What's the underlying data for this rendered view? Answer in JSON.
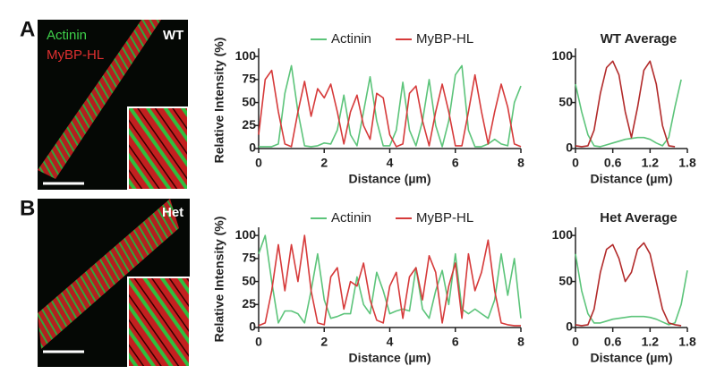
{
  "figure": {
    "panel_a": {
      "letter": "A",
      "genotype": "WT",
      "stain_1": "Actinin",
      "stain_2": "MyBP-HL"
    },
    "panel_b": {
      "letter": "B",
      "genotype": "Het"
    }
  },
  "chart_data": [
    {
      "type": "line",
      "x_label": "Distance (µm)",
      "y_label": "Relative Intensity (%)",
      "x": [
        0,
        0.2,
        0.4,
        0.6,
        0.8,
        1,
        1.2,
        1.4,
        1.6,
        1.8,
        2,
        2.2,
        2.4,
        2.6,
        2.8,
        3,
        3.2,
        3.4,
        3.6,
        3.8,
        4,
        4.2,
        4.4,
        4.6,
        4.8,
        5,
        5.2,
        5.4,
        5.6,
        5.8,
        6,
        6.2,
        6.4,
        6.6,
        6.8,
        7,
        7.2,
        7.4,
        7.6,
        7.8,
        8
      ],
      "series": [
        {
          "name": "Actinin",
          "color": "#5cc47a",
          "values": [
            2,
            2,
            2,
            5,
            60,
            90,
            40,
            3,
            2,
            3,
            6,
            5,
            20,
            58,
            15,
            3,
            40,
            78,
            30,
            3,
            3,
            20,
            72,
            20,
            3,
            30,
            75,
            25,
            2,
            30,
            80,
            90,
            20,
            2,
            2,
            5,
            10,
            5,
            3,
            50,
            68
          ]
        },
        {
          "name": "MyBP-HL",
          "color": "#d63a3a",
          "values": [
            15,
            75,
            85,
            40,
            5,
            2,
            40,
            73,
            35,
            65,
            55,
            70,
            40,
            5,
            40,
            58,
            25,
            10,
            60,
            55,
            15,
            2,
            5,
            60,
            68,
            30,
            3,
            40,
            70,
            40,
            3,
            3,
            40,
            80,
            40,
            5,
            40,
            70,
            45,
            5,
            2
          ]
        }
      ],
      "xlim": [
        0,
        8
      ],
      "xticks": [
        0,
        2,
        4,
        6,
        8
      ],
      "ylim": [
        0,
        105
      ],
      "yticks": [
        0,
        25,
        50,
        75,
        100
      ],
      "legend": "top"
    },
    {
      "type": "line",
      "title": "WT Average",
      "x_label": "Distance (µm)",
      "x": [
        0,
        0.1,
        0.2,
        0.3,
        0.4,
        0.5,
        0.6,
        0.7,
        0.8,
        0.9,
        1,
        1.1,
        1.2,
        1.3,
        1.4,
        1.5,
        1.6,
        1.7,
        1.8
      ],
      "series": [
        {
          "color": "#5cc47a",
          "values": [
            70,
            40,
            15,
            3,
            2,
            4,
            6,
            8,
            10,
            11,
            12,
            12,
            10,
            6,
            3,
            12,
            45,
            75,
            null
          ]
        },
        {
          "color": "#b22a2a",
          "values": [
            3,
            2,
            3,
            20,
            60,
            88,
            95,
            80,
            40,
            12,
            45,
            85,
            95,
            70,
            25,
            3,
            2,
            null,
            null
          ]
        }
      ],
      "xlim": [
        0,
        1.8
      ],
      "xticks": [
        0,
        0.6,
        1.2,
        1.8
      ],
      "ylim": [
        0,
        105
      ],
      "yticks": [
        0,
        50,
        100
      ]
    },
    {
      "type": "line",
      "x_label": "Distance (µm)",
      "y_label": "Relative Intensity (%)",
      "x": [
        0,
        0.2,
        0.4,
        0.6,
        0.8,
        1,
        1.2,
        1.4,
        1.6,
        1.8,
        2,
        2.2,
        2.4,
        2.6,
        2.8,
        3,
        3.2,
        3.4,
        3.6,
        3.8,
        4,
        4.2,
        4.4,
        4.6,
        4.8,
        5,
        5.2,
        5.4,
        5.6,
        5.8,
        6,
        6.2,
        6.4,
        6.6,
        6.8,
        7,
        7.2,
        7.4,
        7.6,
        7.8,
        8
      ],
      "series": [
        {
          "name": "Actinin",
          "color": "#5cc47a",
          "values": [
            80,
            100,
            50,
            5,
            18,
            18,
            15,
            5,
            40,
            80,
            30,
            10,
            12,
            15,
            15,
            55,
            25,
            15,
            60,
            40,
            15,
            18,
            20,
            18,
            65,
            20,
            10,
            40,
            62,
            25,
            80,
            20,
            15,
            20,
            15,
            10,
            30,
            80,
            35,
            75,
            10
          ]
        },
        {
          "name": "MyBP-HL",
          "color": "#d63a3a",
          "values": [
            2,
            5,
            40,
            90,
            40,
            90,
            50,
            100,
            40,
            5,
            3,
            55,
            65,
            20,
            50,
            45,
            70,
            30,
            8,
            5,
            45,
            60,
            10,
            55,
            65,
            30,
            78,
            60,
            5,
            45,
            70,
            10,
            80,
            40,
            60,
            95,
            40,
            5,
            3,
            2,
            2
          ]
        }
      ],
      "xlim": [
        0,
        8
      ],
      "xticks": [
        0,
        2,
        4,
        6,
        8
      ],
      "ylim": [
        0,
        105
      ],
      "yticks": [
        0,
        25,
        50,
        75,
        100
      ],
      "legend": "top"
    },
    {
      "type": "line",
      "title": "Het Average",
      "x_label": "Distance (µm)",
      "x": [
        0,
        0.1,
        0.2,
        0.3,
        0.4,
        0.5,
        0.6,
        0.7,
        0.8,
        0.9,
        1,
        1.1,
        1.2,
        1.3,
        1.4,
        1.5,
        1.6,
        1.7,
        1.8
      ],
      "series": [
        {
          "color": "#5cc47a",
          "values": [
            80,
            40,
            15,
            5,
            5,
            7,
            9,
            10,
            11,
            12,
            12,
            12,
            11,
            9,
            6,
            3,
            5,
            25,
            62
          ]
        },
        {
          "color": "#b22a2a",
          "values": [
            3,
            2,
            3,
            20,
            60,
            85,
            90,
            75,
            50,
            60,
            85,
            92,
            80,
            50,
            20,
            5,
            3,
            2,
            null
          ]
        }
      ],
      "xlim": [
        0,
        1.8
      ],
      "xticks": [
        0,
        0.6,
        1.2,
        1.8
      ],
      "ylim": [
        0,
        105
      ],
      "yticks": [
        0,
        50,
        100
      ]
    }
  ]
}
